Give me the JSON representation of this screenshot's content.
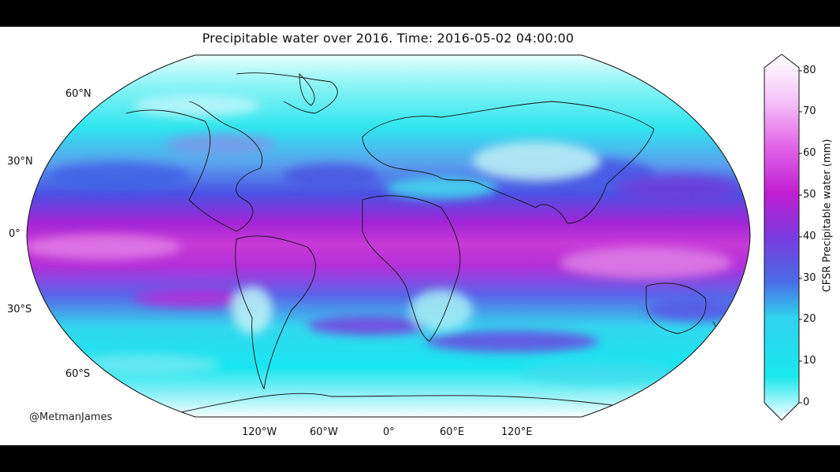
{
  "title": "Precipitable water over 2016. Time: 2016-05-02 04:00:00",
  "credit": "@MetmanJames",
  "map": {
    "projection": "Robinson",
    "lat_labels": [
      "60°N",
      "30°N",
      "0°",
      "30°S",
      "60°S"
    ],
    "lon_labels": [
      "120°W",
      "60°W",
      "0°",
      "60°E",
      "120°E"
    ]
  },
  "colorbar": {
    "label": "CFSR Precipitable water (mm)",
    "ticks": [
      "0",
      "10",
      "20",
      "30",
      "40",
      "50",
      "60",
      "70",
      "80"
    ],
    "range": [
      0,
      80
    ],
    "colors": [
      "#ffffff",
      "#12e6ee",
      "#4b55e6",
      "#c81ed2",
      "#ffffff"
    ]
  }
}
